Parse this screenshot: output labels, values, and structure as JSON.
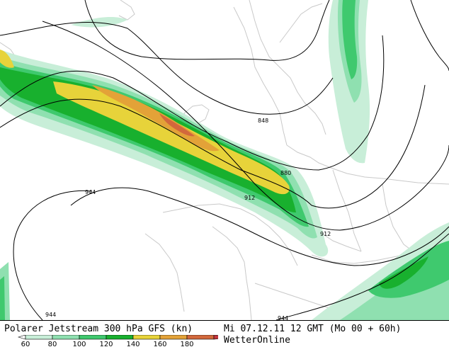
{
  "map": {
    "contour_labels": [
      "848",
      "880",
      "912",
      "912",
      "944",
      "944",
      "944"
    ]
  },
  "legend": {
    "title": "Polarer Jetstream 300 hPa GFS (kn)",
    "ticks": [
      "60",
      "80",
      "100",
      "120",
      "140",
      "160",
      "180"
    ],
    "colors": [
      "#c8eed8",
      "#8fe0b0",
      "#3fc96e",
      "#18b02e",
      "#e7d33a",
      "#e3a238",
      "#d2683c",
      "#c4353f"
    ]
  },
  "run_info": "Mi 07.12.11 12 GMT (Mo 00 + 60h)",
  "brand": "WetterOnline"
}
